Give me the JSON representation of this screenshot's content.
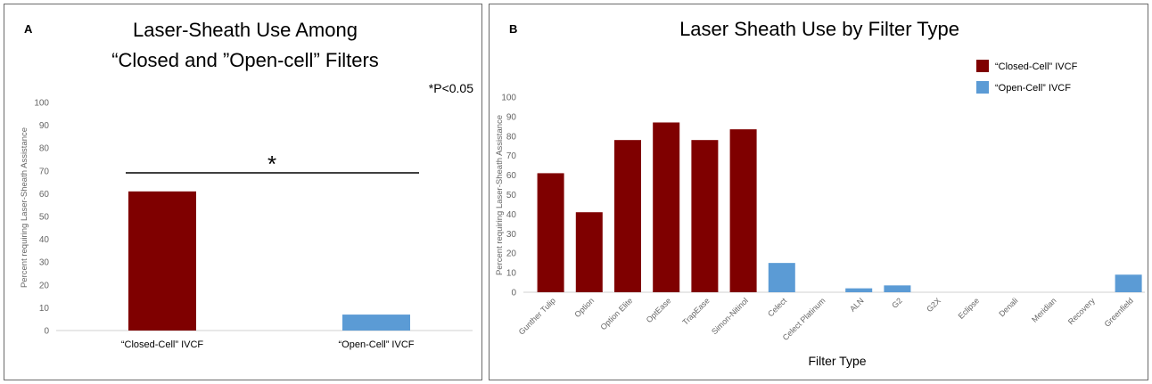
{
  "chart_data": [
    {
      "type": "bar",
      "panel_label": "A",
      "title_lines": [
        "Laser-Sheath Use Among",
        "“Closed and ”Open-cell” Filters"
      ],
      "annotation": "*P<0.05",
      "significance_marker": "*",
      "ylabel": "Percent requiring Laser-Sheath Assistance",
      "ylim": [
        0,
        100
      ],
      "yticks": [
        0,
        10,
        20,
        30,
        40,
        50,
        60,
        70,
        80,
        90,
        100
      ],
      "grid": false,
      "categories": [
        "“Closed-Cell” IVCF",
        "“Open-Cell” IVCF"
      ],
      "values": [
        61,
        7
      ],
      "colors": [
        "#7f0000",
        "#5b9bd5"
      ]
    },
    {
      "type": "bar",
      "panel_label": "B",
      "title": "Laser Sheath Use by Filter Type",
      "xlabel": "Filter Type",
      "ylabel": "Percent requiring Laser-Sheath Assistance",
      "ylim": [
        0,
        100
      ],
      "yticks": [
        0,
        10,
        20,
        30,
        40,
        50,
        60,
        70,
        80,
        90,
        100
      ],
      "grid": false,
      "legend_position": "top-right",
      "legend": [
        {
          "label": "“Closed-Cell” IVCF",
          "color": "#7f0000"
        },
        {
          "label": "“Open-Cell” IVCF",
          "color": "#5b9bd5"
        }
      ],
      "categories": [
        "Gunther Tulip",
        "Option",
        "Option Elite",
        "OptEase",
        "TrapEase",
        "Simon-Nitinol",
        "Celect",
        "Celect Platinum",
        "ALN",
        "G2",
        "G2X",
        "Eclipse",
        "Denali",
        "Meridian",
        "Recovery",
        "Greenfield"
      ],
      "values": [
        61,
        41,
        78,
        87,
        78,
        83.5,
        15,
        0,
        2,
        3.5,
        0,
        0,
        0,
        0,
        0,
        9
      ],
      "colors": [
        "#7f0000",
        "#7f0000",
        "#7f0000",
        "#7f0000",
        "#7f0000",
        "#7f0000",
        "#5b9bd5",
        "#5b9bd5",
        "#5b9bd5",
        "#5b9bd5",
        "#5b9bd5",
        "#5b9bd5",
        "#5b9bd5",
        "#5b9bd5",
        "#5b9bd5",
        "#5b9bd5"
      ]
    }
  ]
}
